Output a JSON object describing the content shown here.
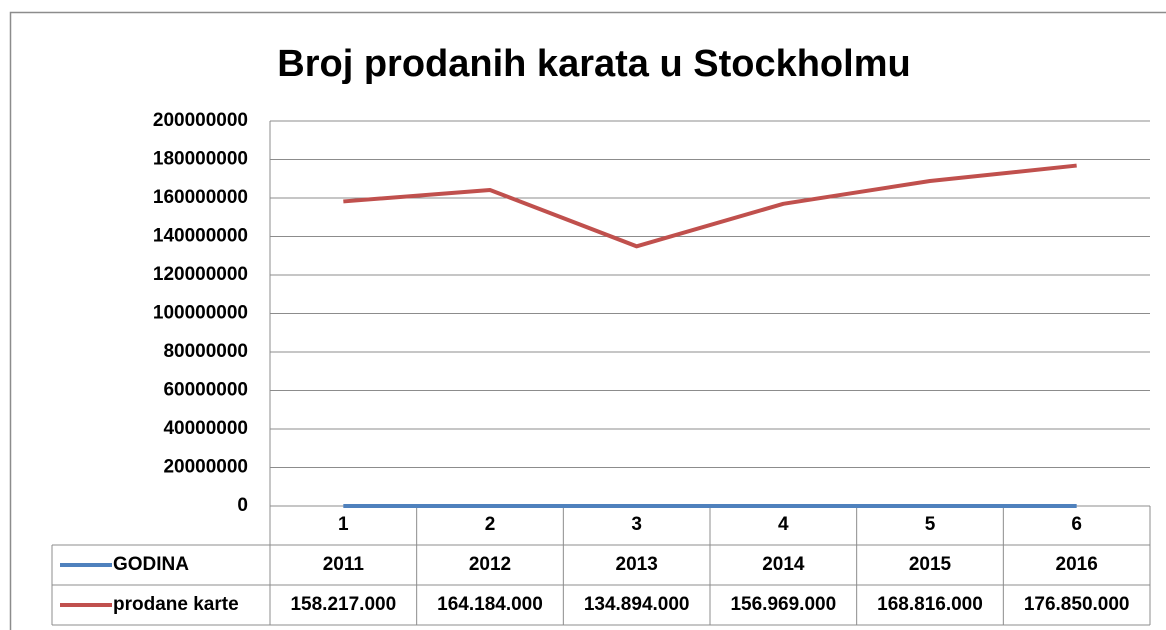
{
  "chart_data": {
    "type": "line",
    "title": "Broj prodanih karata u Stockholmu",
    "categories": [
      1,
      2,
      3,
      4,
      5,
      6
    ],
    "series": [
      {
        "name": "GODINA",
        "color": "#4f81bd",
        "values": [
          2011,
          2012,
          2013,
          2014,
          2015,
          2016
        ]
      },
      {
        "name": "prodane karte",
        "color": "#c0504d",
        "values": [
          158217000,
          164184000,
          134894000,
          156969000,
          168816000,
          176850000
        ],
        "value_labels": [
          "158.217.000",
          "164.184.000",
          "134.894.000",
          "156.969.000",
          "168.816.000",
          "176.850.000"
        ]
      }
    ],
    "ylim": [
      0,
      200000000
    ],
    "yticks": [
      0,
      20000000,
      40000000,
      60000000,
      80000000,
      100000000,
      120000000,
      140000000,
      160000000,
      180000000,
      200000000
    ],
    "grid": true,
    "data_table": true
  }
}
